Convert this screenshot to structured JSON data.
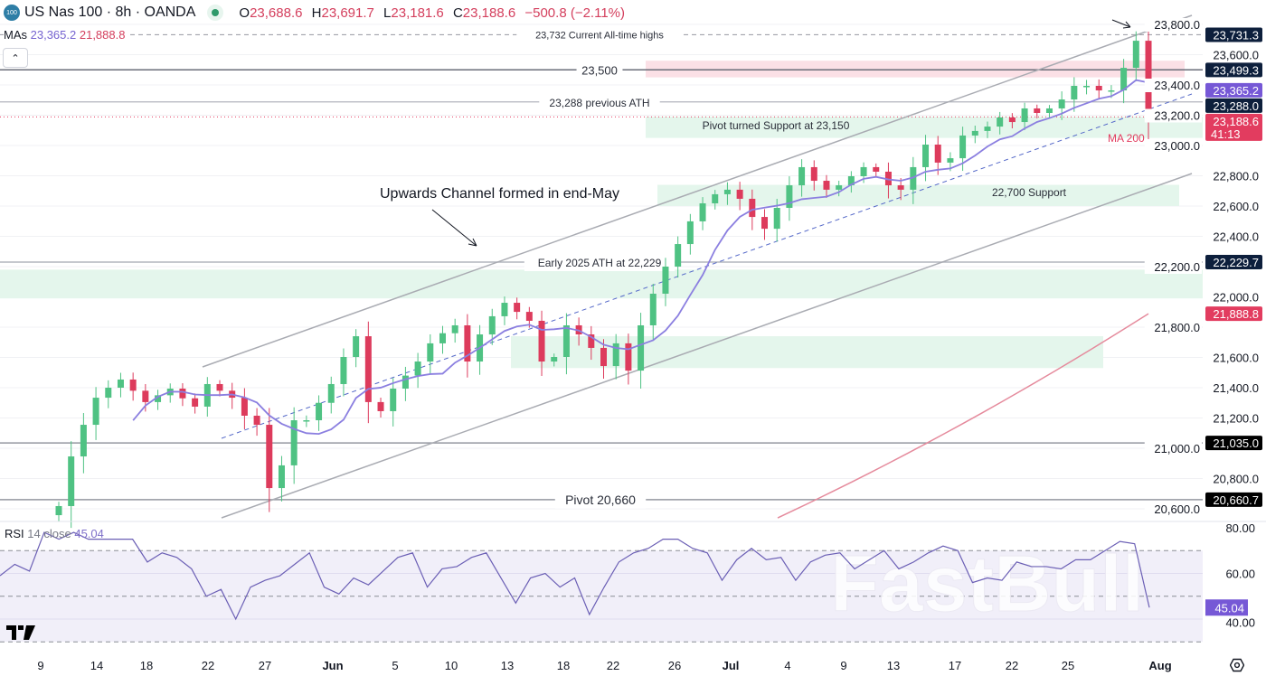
{
  "header": {
    "symbol_badge": "100",
    "title": "US Nas 100 · 8h · OANDA",
    "open_label": "O",
    "open": "23,688.6",
    "high_label": "H",
    "high": "23,691.7",
    "low_label": "L",
    "low": "23,181.6",
    "close_label": "C",
    "close": "23,188.6",
    "change": "−500.8 (−2.11%)"
  },
  "mas": {
    "label": "MAs",
    "ma1": "23,365.2",
    "ma2": "21,888.8"
  },
  "rsi": {
    "label": "RSI",
    "params": "14 close",
    "value": "45.04"
  },
  "colors": {
    "up": "#4fc283",
    "down": "#dd3b5c",
    "ma_fast": "#8b7fe0",
    "ma200": "#e58a9c",
    "zone_green": "#e4f6ec",
    "zone_red": "#fbe0e6",
    "navy": "#0d1f3c",
    "purple": "#7658d6",
    "red": "#e23c5f"
  },
  "annotations": {
    "ath_current": {
      "price": 23732,
      "text": "23,732 Current All-time highs"
    },
    "level_23500": {
      "price": 23500,
      "text": "23,500"
    },
    "prev_ath": {
      "price": 23288,
      "text": "23,288 previous ATH"
    },
    "pivot_support": {
      "low": 23050,
      "high": 23190,
      "text": "Pivot turned Support at 23,150"
    },
    "support_22700": {
      "low": 22600,
      "high": 22740,
      "text": "22,700 Support"
    },
    "early_ath": {
      "price": 22229.7,
      "text": "Early 2025 ATH at 22,229"
    },
    "channel": {
      "text": "Upwards Channel formed in end-May"
    },
    "pivot_20660": {
      "price": 20660.7,
      "text": "Pivot 20,660"
    },
    "ma200_label": "MA 200",
    "zone_red": {
      "low": 23450,
      "high": 23560
    },
    "zone_green_wide": {
      "low": 21990,
      "high": 22180
    },
    "zone_green_mid": {
      "low": 21530,
      "high": 21740
    }
  },
  "price_axis": {
    "ticks": [
      "23,800.0",
      "23,600.0",
      "23,400.0",
      "23,200.0",
      "23,000.0",
      "22,800.0",
      "22,600.0",
      "22,400.0",
      "22,200.0",
      "22,000.0",
      "21,800.0",
      "21,600.0",
      "21,400.0",
      "21,200.0",
      "21,000.0",
      "20,800.0",
      "20,600.0"
    ],
    "badges": [
      {
        "price": 23731.3,
        "text": "23,731.3",
        "color": "#0d1f3c"
      },
      {
        "price": 23499.3,
        "text": "23,499.3",
        "color": "#0d1f3c"
      },
      {
        "price": 23365.2,
        "text": "23,365.2",
        "color": "#7658d6"
      },
      {
        "price": 23288.0,
        "text": "23,288.0",
        "color": "#0d1f3c"
      },
      {
        "price": 23188.6,
        "text": "23,188.6",
        "sub": "41:13",
        "color": "#e23c5f"
      },
      {
        "price": 22229.7,
        "text": "22,229.7",
        "color": "#0d1f3c"
      },
      {
        "price": 21888.8,
        "text": "21,888.8",
        "color": "#e23c5f"
      },
      {
        "price": 21035.0,
        "text": "21,035.0",
        "color": "#000000"
      },
      {
        "price": 20660.7,
        "text": "20,660.7",
        "color": "#000000"
      }
    ]
  },
  "rsi_axis": {
    "ticks": [
      "80.00",
      "60.00",
      "40.00"
    ],
    "badge": "45.04"
  },
  "time_axis": [
    "9",
    "14",
    "18",
    "22",
    "27",
    "Jun",
    "5",
    "10",
    "13",
    "18",
    "22",
    "26",
    "Jul",
    "4",
    "9",
    "13",
    "17",
    "22",
    "25",
    "Aug"
  ],
  "watermark": "FastBull",
  "chart_data": {
    "type": "candlestick",
    "title": "US Nas 100 · 8h · OANDA",
    "ylim": [
      20560,
      23850
    ],
    "closes": [
      20618,
      20946,
      21155,
      21334,
      21400,
      21454,
      21380,
      21305,
      21350,
      21394,
      21330,
      21275,
      21424,
      21380,
      21334,
      21215,
      21155,
      20737,
      20887,
      21185,
      21185,
      21300,
      21424,
      21603,
      21740,
      21305,
      21245,
      21394,
      21480,
      21573,
      21693,
      21760,
      21812,
      21573,
      21752,
      21872,
      21961,
      21901,
      21842,
      21573,
      21603,
      21812,
      21752,
      21663,
      21543,
      21693,
      21513,
      21812,
      22021,
      22200,
      22349,
      22499,
      22618,
      22678,
      22708,
      22648,
      22528,
      22450,
      22588,
      22737,
      22857,
      22767,
      22708,
      22737,
      22797,
      22857,
      22827,
      22737,
      22708,
      22857,
      23006,
      22887,
      22916,
      23066,
      23096,
      23125,
      23185,
      23155,
      23245,
      23215,
      23245,
      23304,
      23394,
      23394,
      23364,
      23364,
      23513,
      23692,
      23188.6
    ],
    "rsi_values": [
      59,
      64,
      61,
      78,
      75,
      78,
      75,
      75,
      75,
      75,
      65,
      69,
      67,
      62,
      50,
      53,
      40,
      54,
      57,
      59,
      64,
      69,
      54,
      51,
      58,
      55,
      61,
      67,
      69,
      54,
      62,
      63,
      67,
      69,
      58,
      47,
      58,
      60,
      54,
      58,
      42,
      54,
      65,
      69,
      71,
      75,
      75,
      71,
      69,
      57,
      66,
      71,
      66,
      67,
      57,
      65,
      68,
      69,
      62,
      66,
      70,
      62,
      65,
      69,
      72,
      70,
      56,
      58,
      57,
      65,
      63,
      63,
      62,
      66,
      66,
      70,
      74,
      73,
      45.04
    ],
    "rsi_ylim": [
      25,
      85
    ],
    "ma200_end": 21888.8
  }
}
